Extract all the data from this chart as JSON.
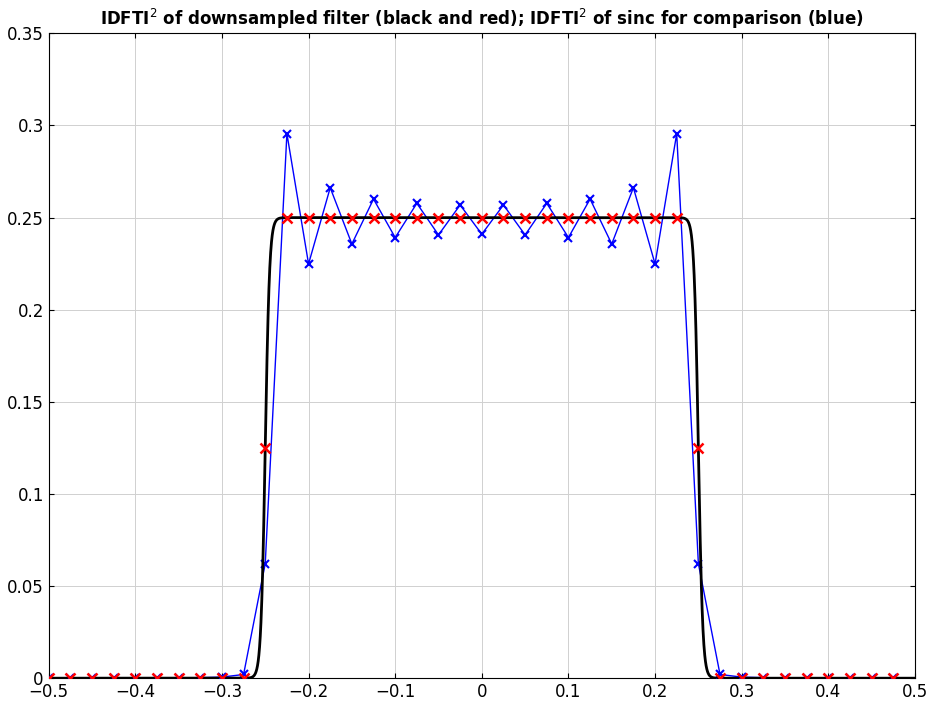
{
  "title": "IDFTI$^2$ of downsampled filter (black and red); IDFTI$^2$ of sinc for comparison (blue)",
  "xlim": [
    -0.5,
    0.5
  ],
  "ylim": [
    0,
    0.35
  ],
  "xticks": [
    -0.5,
    -0.4,
    -0.3,
    -0.2,
    -0.1,
    0.0,
    0.1,
    0.2,
    0.3,
    0.4,
    0.5
  ],
  "yticks": [
    0,
    0.05,
    0.1,
    0.15,
    0.2,
    0.25,
    0.3,
    0.35
  ],
  "background_color": "#ffffff",
  "grid_color": "#d0d0d0",
  "N_samples": 40,
  "cutoff": 0.25,
  "N_fir": 20,
  "filter_steepness": 400
}
